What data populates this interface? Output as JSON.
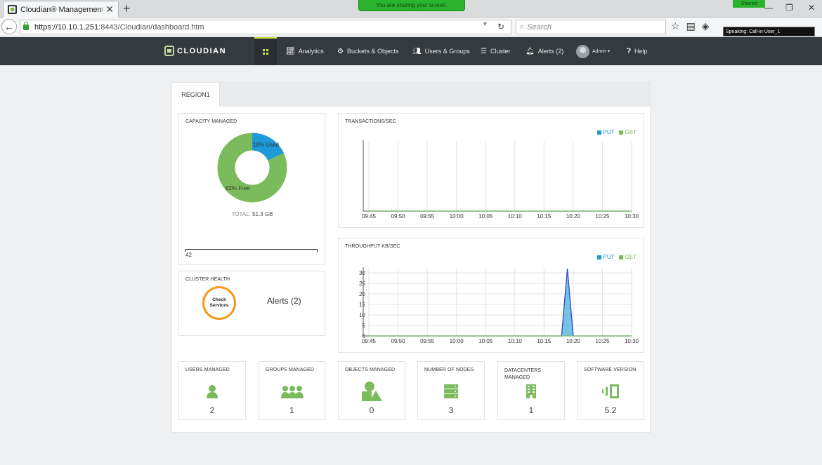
{
  "browser": {
    "tab_title": "Cloudian® Management ...",
    "tab_close": "✕",
    "new_tab": "+",
    "share_banner": "You are sharing your screen.",
    "shared_badge": "Shared",
    "url_host": "https://10.10.1.251",
    "url_path": ":8443/Cloudian/dashboard.htm",
    "search_placeholder": "Search",
    "speaking": "Speaking: Call-in User_1"
  },
  "app": {
    "logo_text": "CLOUDIAN",
    "nav": {
      "analytics": "Analytics",
      "buckets": "Buckets & Objects",
      "users": "Users & Groups",
      "cluster": "Cluster",
      "alerts": "Alerts (2)",
      "admin": "Admin ▾",
      "help": "Help"
    }
  },
  "dashboard": {
    "region_tab": "REGION1",
    "capacity": {
      "title": "CAPACITY MANAGED",
      "used_label": "18% Used",
      "free_label": "82% Free",
      "total_prefix": "TOTAL",
      "total_value": "51.3 GB",
      "slider_value": "42",
      "used_percent": 18,
      "colors": {
        "used": "#1e9ad6",
        "free": "#7cbb5b"
      }
    },
    "cluster_health": {
      "title": "CLUSTER HEALTH",
      "check_line1": "Check",
      "check_line2": "Services",
      "alerts": "Alerts (2)"
    },
    "stats": [
      {
        "title": "USERS MANAGED",
        "value": "2",
        "icon": "user-icon"
      },
      {
        "title": "GROUPS MANAGED",
        "value": "1",
        "icon": "group-icon"
      },
      {
        "title": "OBJECTS MANAGED",
        "value": "0",
        "icon": "objects-icon"
      },
      {
        "title": "NUMBER OF NODES",
        "value": "3",
        "icon": "server-icon"
      },
      {
        "title": "DATACENTERS MANAGED",
        "value": "1",
        "icon": "building-icon"
      },
      {
        "title": "SOFTWARE VERSION",
        "value": "5.2",
        "icon": "software-icon"
      }
    ],
    "legend": {
      "put": "PUT",
      "get": "GET"
    },
    "colors": {
      "put": "#1e9ad6",
      "get": "#7cbb5b",
      "accent": "#d3e33b"
    }
  },
  "chart_data": [
    {
      "type": "line",
      "title": "TRANSACTIONS/SEC",
      "x": [
        "09:45",
        "09:50",
        "09:55",
        "10:00",
        "10:05",
        "10:10",
        "10:15",
        "10:20",
        "10:25",
        "10:30"
      ],
      "series": [
        {
          "name": "PUT",
          "values": [
            0,
            0,
            0,
            0,
            0,
            0,
            0,
            0,
            0,
            0
          ]
        },
        {
          "name": "GET",
          "values": [
            0,
            0,
            0,
            0,
            0,
            0,
            0,
            0,
            0,
            0
          ]
        }
      ],
      "grid": true
    },
    {
      "type": "area",
      "title": "THROUGHPUT KB/SEC",
      "x": [
        "09:45",
        "09:50",
        "09:55",
        "10:00",
        "10:05",
        "10:10",
        "10:15",
        "10:20",
        "10:25",
        "10:30"
      ],
      "yticks": [
        "0",
        "5",
        "10",
        "15",
        "20",
        "25",
        "30"
      ],
      "ylim": [
        0,
        32
      ],
      "series": [
        {
          "name": "PUT",
          "points": [
            [
              0,
              0
            ],
            [
              6.6,
              0
            ],
            [
              6.8,
              32
            ],
            [
              7.0,
              0
            ],
            [
              9,
              0
            ]
          ]
        },
        {
          "name": "GET",
          "points": [
            [
              0,
              0
            ],
            [
              9,
              0
            ]
          ]
        }
      ],
      "grid": true
    }
  ]
}
